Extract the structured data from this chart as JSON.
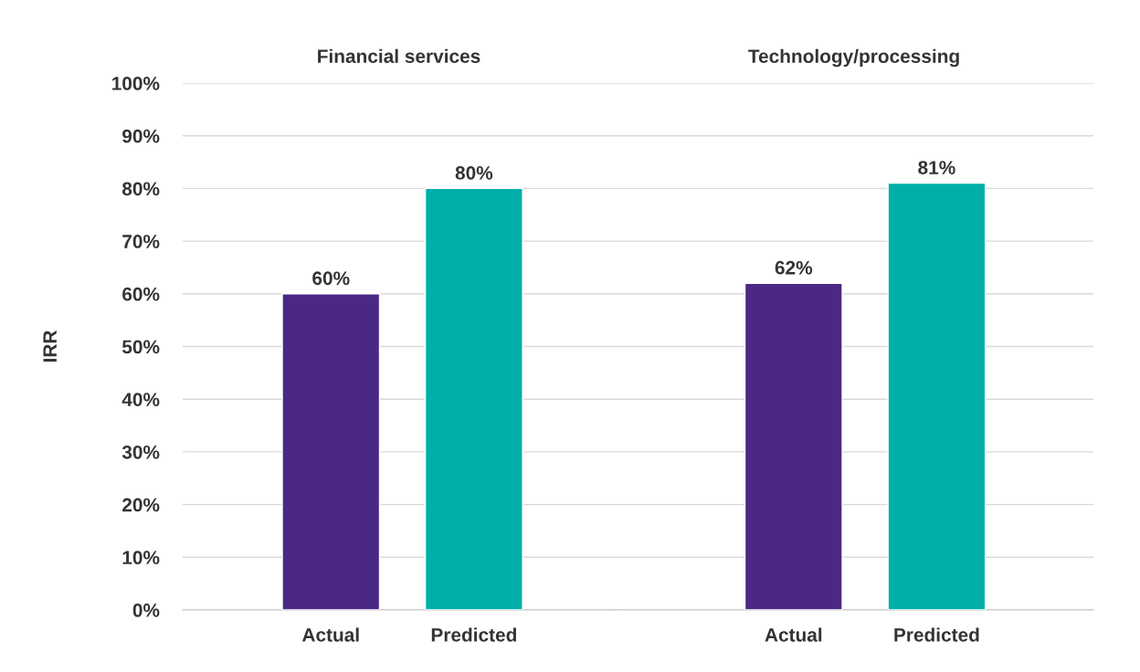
{
  "chart_data": [
    {
      "type": "bar",
      "title": "Financial services",
      "ylabel": "IRR",
      "categories": [
        "Actual",
        "Predicted"
      ],
      "values": [
        60,
        80
      ],
      "colors": [
        "#4b2884",
        "#00b0a8"
      ],
      "data_labels": true,
      "value_labels": [
        "60%",
        "80%"
      ],
      "ylim": [
        0,
        100
      ],
      "yticks": [
        {
          "value": 0,
          "label": "0%"
        },
        {
          "value": 10,
          "label": "10%"
        },
        {
          "value": 20,
          "label": "20%"
        },
        {
          "value": 30,
          "label": "30%"
        },
        {
          "value": 40,
          "label": "40%"
        },
        {
          "value": 50,
          "label": "50%"
        },
        {
          "value": 60,
          "label": "60%"
        },
        {
          "value": 70,
          "label": "70%"
        },
        {
          "value": 80,
          "label": "80%"
        },
        {
          "value": 90,
          "label": "90%"
        },
        {
          "value": 100,
          "label": "100%"
        }
      ],
      "grid": "y"
    },
    {
      "type": "bar",
      "title": "Technology/processing",
      "categories": [
        "Actual",
        "Predicted"
      ],
      "values": [
        62,
        81
      ],
      "colors": [
        "#4b2884",
        "#00b0a8"
      ],
      "data_labels": true,
      "value_labels": [
        "62%",
        "81%"
      ],
      "ylim": [
        0,
        100
      ],
      "yticks": [
        {
          "value": 0,
          "label": null
        },
        {
          "value": 10,
          "label": null
        },
        {
          "value": 20,
          "label": null
        },
        {
          "value": 30,
          "label": null
        },
        {
          "value": 40,
          "label": null
        },
        {
          "value": 50,
          "label": null
        },
        {
          "value": 60,
          "label": null
        },
        {
          "value": 70,
          "label": null
        },
        {
          "value": 80,
          "label": null
        },
        {
          "value": 90,
          "label": null
        },
        {
          "value": 100,
          "label": null
        }
      ],
      "grid": "y",
      "tick_labels": "x"
    }
  ]
}
